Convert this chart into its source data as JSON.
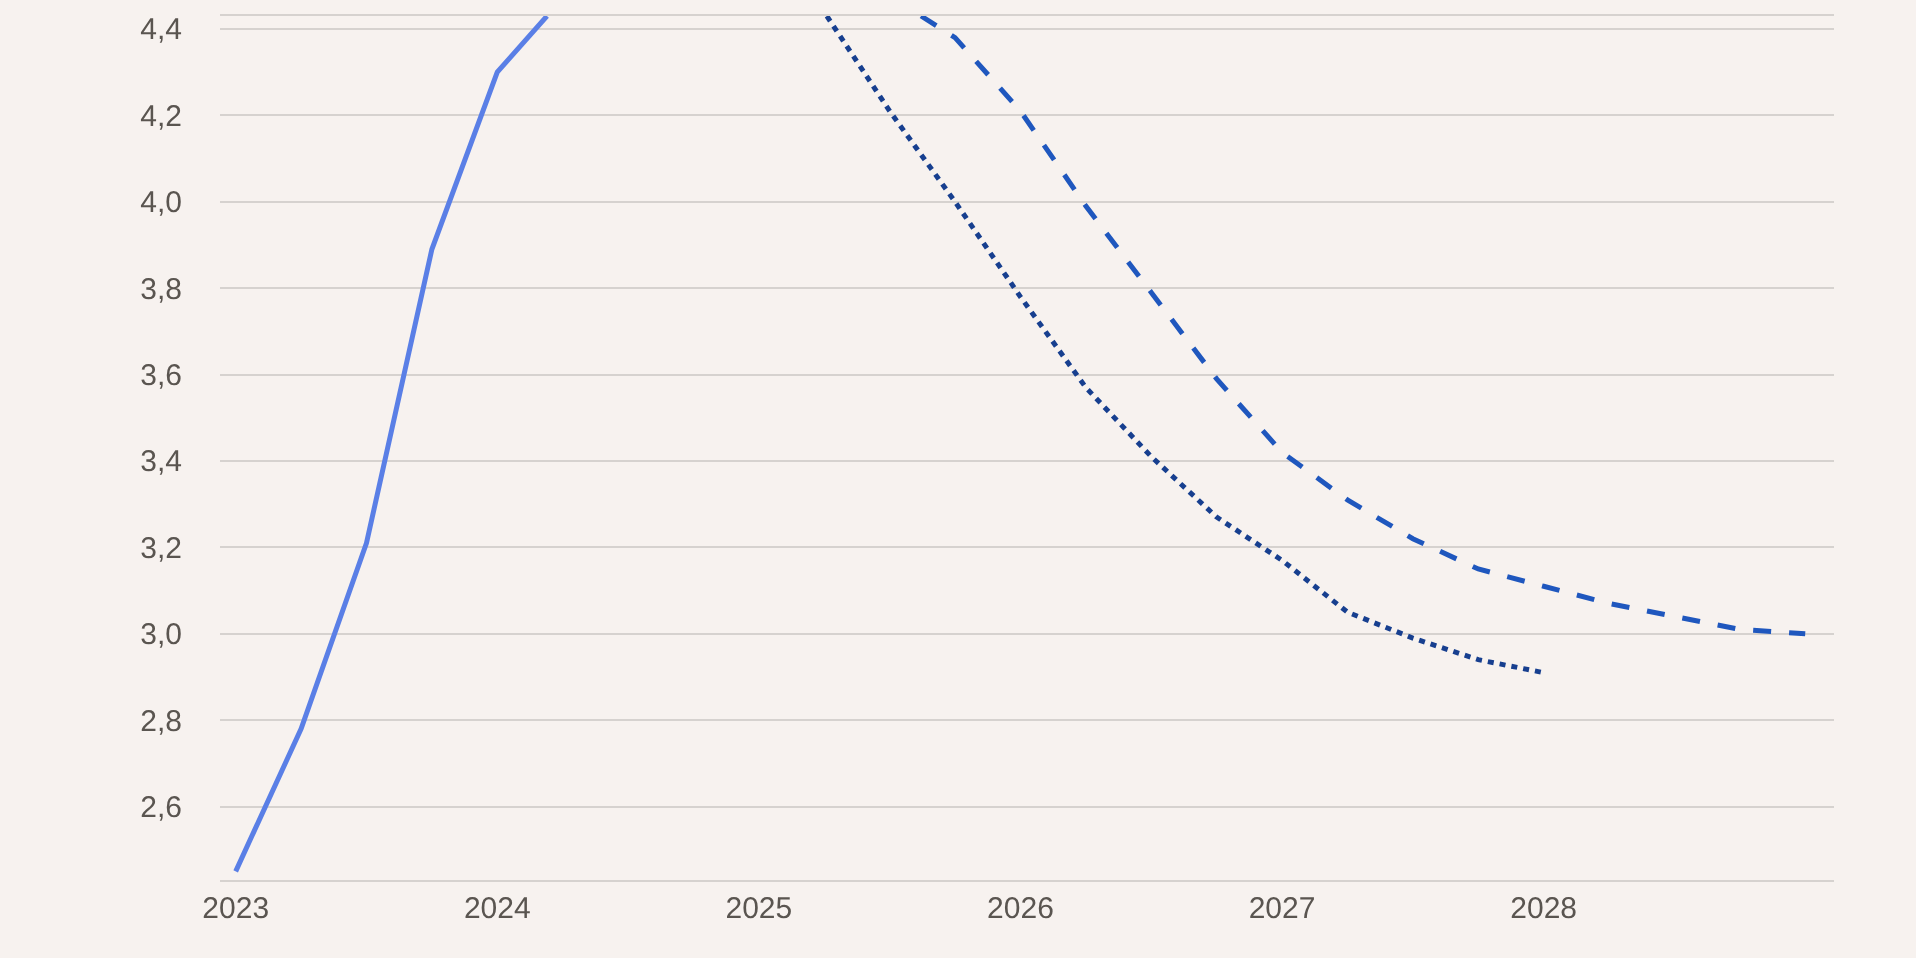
{
  "chart_data": {
    "type": "line",
    "xlim": [
      2022.94,
      2029.11
    ],
    "ylim": [
      2.43,
      4.43
    ],
    "xticks": [
      2023,
      2024,
      2025,
      2026,
      2027,
      2028
    ],
    "yticks": [
      {
        "value": 2.6,
        "label": "2,6"
      },
      {
        "value": 2.8,
        "label": "2,8"
      },
      {
        "value": 3.0,
        "label": "3,0"
      },
      {
        "value": 3.2,
        "label": "3,2"
      },
      {
        "value": 3.4,
        "label": "3,4"
      },
      {
        "value": 3.6,
        "label": "3,6"
      },
      {
        "value": 3.8,
        "label": "3,8"
      },
      {
        "value": 4.0,
        "label": "4,0"
      },
      {
        "value": 4.2,
        "label": "4,2"
      },
      {
        "value": 4.4,
        "label": "4,4"
      }
    ],
    "grid": "y",
    "series": [
      {
        "color": "#5a7fe6",
        "line_style": "solid",
        "x": [
          2023,
          2023.25,
          2023.5,
          2023.75,
          2024,
          2024.19
        ],
        "values": [
          2.45,
          2.78,
          3.21,
          3.89,
          4.3,
          4.43
        ]
      },
      {
        "color": "#1f57be",
        "line_style": "dashed",
        "x": [
          2025.62,
          2025.75,
          2026,
          2026.25,
          2026.5,
          2026.75,
          2027,
          2027.25,
          2027.5,
          2027.75,
          2028,
          2028.25,
          2028.5,
          2028.75,
          2029
        ],
        "values": [
          4.43,
          4.38,
          4.21,
          3.99,
          3.79,
          3.59,
          3.42,
          3.31,
          3.22,
          3.15,
          3.11,
          3.07,
          3.04,
          3.01,
          3.0
        ]
      },
      {
        "color": "#173f8f",
        "line_style": "dotted",
        "x": [
          2025.26,
          2025.5,
          2025.75,
          2026,
          2026.25,
          2026.5,
          2026.75,
          2027,
          2027.25,
          2027.5,
          2027.75,
          2028
        ],
        "values": [
          4.43,
          4.21,
          4.0,
          3.78,
          3.57,
          3.41,
          3.27,
          3.17,
          3.05,
          2.99,
          2.94,
          2.91
        ]
      }
    ]
  }
}
